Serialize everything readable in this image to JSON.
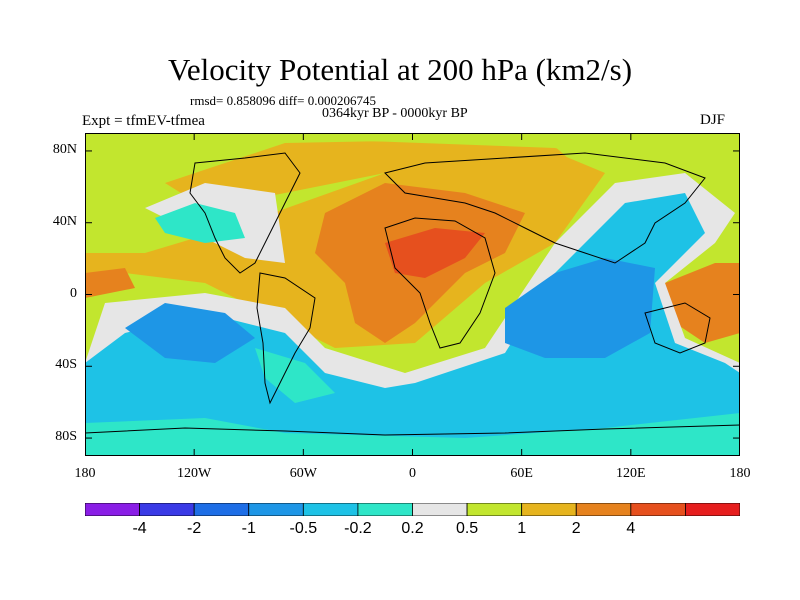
{
  "header": {
    "title": "Velocity Potential at 200 hPa (km2/s)",
    "stats": "rmsd= 0.858096 diff= 0.000206745",
    "experiment": "Expt = tfmEV-tfmea",
    "period": "0364kyr BP - 0000kyr BP",
    "season": "DJF"
  },
  "axes": {
    "lat_ticks": [
      {
        "value": 80,
        "label": "80N"
      },
      {
        "value": 40,
        "label": "40N"
      },
      {
        "value": 0,
        "label": "0"
      },
      {
        "value": -40,
        "label": "40S"
      },
      {
        "value": -80,
        "label": "80S"
      }
    ],
    "lon_ticks": [
      {
        "value": -180,
        "label": "180"
      },
      {
        "value": -120,
        "label": "120W"
      },
      {
        "value": -60,
        "label": "60W"
      },
      {
        "value": 0,
        "label": "0"
      },
      {
        "value": 60,
        "label": "60E"
      },
      {
        "value": 120,
        "label": "120E"
      },
      {
        "value": 180,
        "label": "180"
      }
    ],
    "lon_range": [
      -180,
      180
    ],
    "lat_range": [
      -90,
      90
    ]
  },
  "colorbar": {
    "colors": [
      "#8a1ee6",
      "#3a3ae6",
      "#1e6ee6",
      "#1e96e6",
      "#1ec2e6",
      "#2ee6c8",
      "#e6e6e6",
      "#c2e62e",
      "#e6b41e",
      "#e6821e",
      "#e6501e",
      "#e61e1e"
    ],
    "labels": [
      "-4",
      "-2",
      "-1",
      "-0.5",
      "-0.2",
      "0.2",
      "0.5",
      "1",
      "2",
      "4"
    ]
  }
}
